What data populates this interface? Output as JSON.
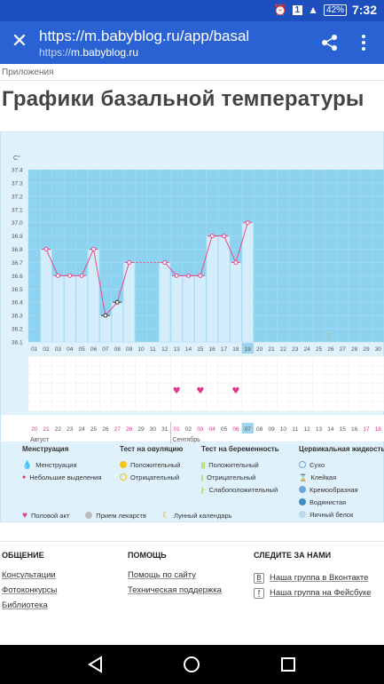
{
  "status": {
    "notif": "1",
    "battery": "42%",
    "time": "7:32"
  },
  "browser": {
    "url": "https://m.babyblog.ru/app/basal",
    "host_scheme": "https://",
    "host": "m.babyblog.ru"
  },
  "breadcrumb": "Приложения",
  "page_title": "Графики базальной температуры",
  "chart": {
    "unit": "C°",
    "y_ticks": [
      "37.4",
      "37.3",
      "37.2",
      "37.1",
      "37.0",
      "36.9",
      "36.8",
      "36.7",
      "36.6",
      "36.5",
      "36.4",
      "36.3",
      "36.2",
      "36.1"
    ],
    "days": [
      "01",
      "02",
      "03",
      "04",
      "05",
      "06",
      "07",
      "08",
      "09",
      "10",
      "11",
      "12",
      "13",
      "14",
      "15",
      "16",
      "17",
      "18",
      "19",
      "20",
      "21",
      "22",
      "23",
      "24",
      "25",
      "26",
      "27",
      "28",
      "29",
      "30"
    ],
    "temps": [
      null,
      36.8,
      36.6,
      36.6,
      36.6,
      36.8,
      36.3,
      36.4,
      36.7,
      null,
      null,
      36.7,
      36.6,
      36.6,
      36.6,
      36.9,
      36.9,
      36.7,
      37.0,
      null,
      null,
      null,
      null,
      null,
      null,
      null,
      null,
      null,
      null,
      null
    ],
    "highlight_day": "19",
    "dates_row1": [
      "20",
      "21",
      "22",
      "23",
      "24",
      "25",
      "26",
      "27",
      "28",
      "29",
      "30",
      "31",
      "01",
      "02",
      "03",
      "04",
      "05",
      "06",
      "07",
      "08",
      "09",
      "10",
      "11",
      "12",
      "13",
      "14",
      "15",
      "16",
      "17",
      "18"
    ],
    "dates_pink": [
      0,
      1,
      7,
      8,
      12,
      14,
      15,
      17,
      28,
      29
    ],
    "today_index": 18,
    "month1": "Август",
    "month2": "Сентябрь",
    "hearts": [
      12,
      14,
      17
    ],
    "moon_index": 25
  },
  "chart_data": {
    "type": "line",
    "x": [
      "01",
      "02",
      "03",
      "04",
      "05",
      "06",
      "07",
      "08",
      "09",
      "10",
      "11",
      "12",
      "13",
      "14",
      "15",
      "16",
      "17",
      "18",
      "19"
    ],
    "series": [
      {
        "values": [
          null,
          36.8,
          36.6,
          36.6,
          36.6,
          36.8,
          36.3,
          36.4,
          36.7,
          null,
          null,
          36.7,
          36.6,
          36.6,
          36.6,
          36.9,
          36.9,
          36.7,
          37.0
        ]
      }
    ],
    "ylabel": "C°",
    "ylim": [
      36.1,
      37.4
    ]
  },
  "legend": {
    "menstruation": {
      "title": "Менструация",
      "items": [
        "Менструация",
        "Небольшие выделения"
      ]
    },
    "ovulation": {
      "title": "Тест на овуляцию",
      "items": [
        "Положительный",
        "Отрицательный"
      ]
    },
    "pregnancy": {
      "title": "Тест на беременность",
      "items": [
        "Положительный",
        "Отрицательный",
        "Слабоположительный"
      ]
    },
    "cervical": {
      "title": "Цервикальная жидкость",
      "items": [
        "Сухо",
        "Клейкая",
        "Кремообразная",
        "Водянистая",
        "Яичный белок"
      ]
    },
    "bottom": [
      "Половой акт",
      "Прием лекарств",
      "Лунный календарь"
    ]
  },
  "footer": {
    "general": {
      "title": "ОБЩЕНИЕ",
      "links": [
        "Консультации",
        "Фотоконкурсы",
        "Библиотека"
      ]
    },
    "help": {
      "title": "ПОМОЩЬ",
      "links": [
        "Помощь по сайту",
        "Техническая поддержка"
      ]
    },
    "follow": {
      "title": "СЛЕДИТЕ ЗА НАМИ",
      "links": [
        "Наша группа в Вконтакте",
        "Наша группа на Фейсбуке"
      ]
    }
  },
  "colors": {
    "status_bar": "#1e4fbf",
    "toolbar": "#2a62d4",
    "chart_bg": "#8dd3f0",
    "line": "#e8498b"
  }
}
